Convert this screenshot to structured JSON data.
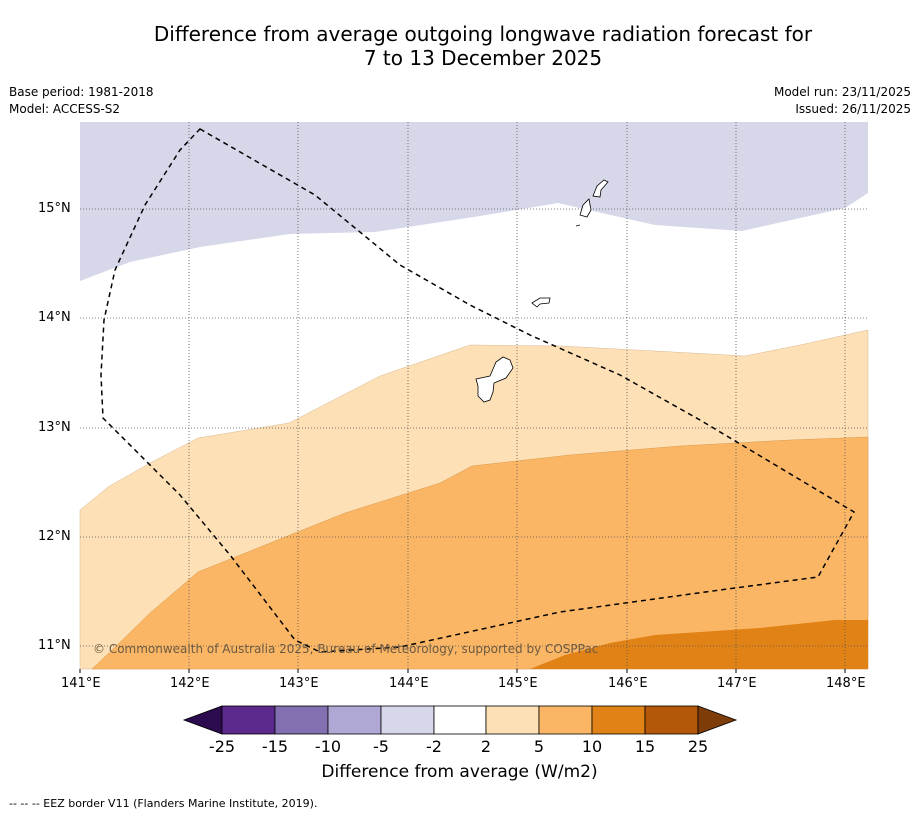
{
  "title": {
    "line1": "Difference from average outgoing longwave radiation forecast for",
    "line2": "7 to 13 December 2025"
  },
  "meta": {
    "base_period": "Base period: 1981-2018",
    "model": "Model: ACCESS-S2",
    "model_run": "Model run: 23/11/2025",
    "issued": "Issued: 26/11/2025"
  },
  "copyright": "© Commonwealth of Australia 2025, Bureau of Meteorology, supported by COSPPac",
  "axes": {
    "lon_labels": [
      "141°E",
      "142°E",
      "143°E",
      "144°E",
      "145°E",
      "146°E",
      "147°E",
      "148°E"
    ],
    "lat_labels": [
      "15°N",
      "14°N",
      "13°N",
      "12°N",
      "11°N"
    ]
  },
  "colorbar": {
    "title": "Difference from average (W/m2)",
    "tick_labels": [
      "-25",
      "-15",
      "-10",
      "-5",
      "-2",
      "2",
      "5",
      "10",
      "15",
      "25"
    ],
    "colors": {
      "under": "#2d0b4f",
      "c1": "#5b2a8c",
      "c2": "#8270b0",
      "c3": "#b0a8d4",
      "c4": "#d7d7ea",
      "c5": "#ffffff",
      "c6": "#fde0b6",
      "c7": "#fab664",
      "c8": "#e08216",
      "c9": "#b35708",
      "over": "#7e3c09"
    }
  },
  "legend_note": "--  --  -- EEZ border V11 (Flanders Marine Institute, 2019).",
  "colors": {
    "neg_2_5": "#d7d7ea",
    "pos_2_5": "#fde0b6",
    "pos_5_10": "#fab664",
    "pos_10_15": "#e08216"
  }
}
